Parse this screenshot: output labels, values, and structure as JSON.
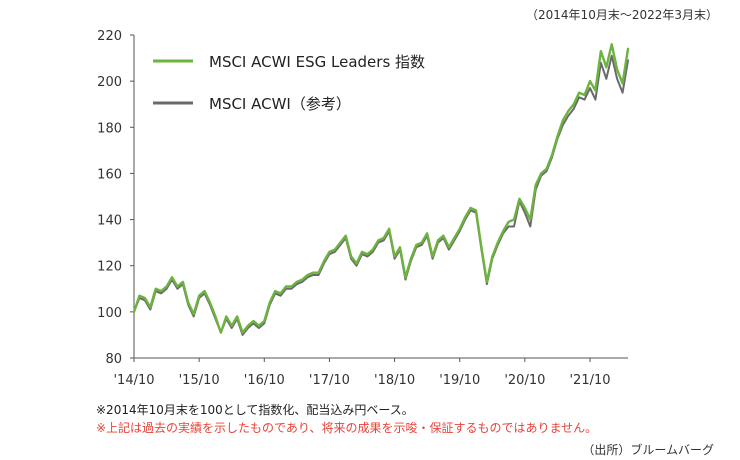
{
  "period_note": "（2014年10月末～2022年3月末）",
  "footnotes": [
    "※2014年10月末を100として指数化、配当込み円ベース。",
    "※上記は過去の実績を示したものであり、将来の成果を示唆・保証するものではありません。"
  ],
  "source": "（出所）ブルームバーグ",
  "chart_data": {
    "type": "line",
    "title": "",
    "xlabel": "",
    "ylabel": "",
    "ylim": [
      80,
      220
    ],
    "yticks": [
      80,
      100,
      120,
      140,
      160,
      180,
      200,
      220
    ],
    "x_start": "2014-10",
    "x_end": "2022-03",
    "x_tick_labels": [
      "'14/10",
      "'15/10",
      "'16/10",
      "'17/10",
      "'18/10",
      "'19/10",
      "'20/10",
      "'21/10"
    ],
    "grid": false,
    "legend_position": "top-left",
    "series": [
      {
        "name": "MSCI ACWI ESG Leaders 指数",
        "color": "#6db33f",
        "values": [
          100,
          107,
          106,
          102,
          110,
          109,
          111,
          115,
          111,
          113,
          104,
          99,
          107,
          109,
          104,
          98,
          91,
          98,
          94,
          98,
          91,
          94,
          96,
          94,
          96,
          104,
          109,
          108,
          111,
          111,
          113,
          114,
          116,
          117,
          117,
          122,
          126,
          127,
          130,
          133,
          124,
          121,
          126,
          125,
          127,
          131,
          132,
          136,
          124,
          128,
          115,
          123,
          129,
          130,
          134,
          124,
          131,
          133,
          128,
          132,
          136,
          141,
          145,
          144,
          128,
          113,
          124,
          130,
          135,
          139,
          140,
          149,
          145,
          140,
          155,
          160,
          162,
          168,
          176,
          183,
          187,
          190,
          195,
          194,
          200,
          196,
          213,
          206,
          216,
          205,
          199,
          214
        ]
      },
      {
        "name": "MSCI ACWI（参考）",
        "color": "#6a6a6a",
        "values": [
          100,
          106,
          105,
          101,
          109,
          108,
          110,
          114,
          110,
          112,
          103,
          98,
          106,
          108,
          103,
          97,
          91,
          97,
          93,
          97,
          90,
          93,
          95,
          93,
          95,
          103,
          108,
          107,
          110,
          110,
          112,
          113,
          115,
          116,
          116,
          121,
          125,
          126,
          129,
          132,
          123,
          120,
          125,
          124,
          126,
          130,
          131,
          135,
          123,
          127,
          114,
          122,
          128,
          129,
          133,
          123,
          130,
          132,
          127,
          131,
          135,
          140,
          144,
          143,
          127,
          112,
          123,
          129,
          134,
          137,
          137,
          148,
          143,
          137,
          153,
          159,
          161,
          167,
          175,
          181,
          185,
          188,
          193,
          192,
          197,
          192,
          208,
          201,
          211,
          201,
          195,
          209
        ]
      }
    ]
  }
}
